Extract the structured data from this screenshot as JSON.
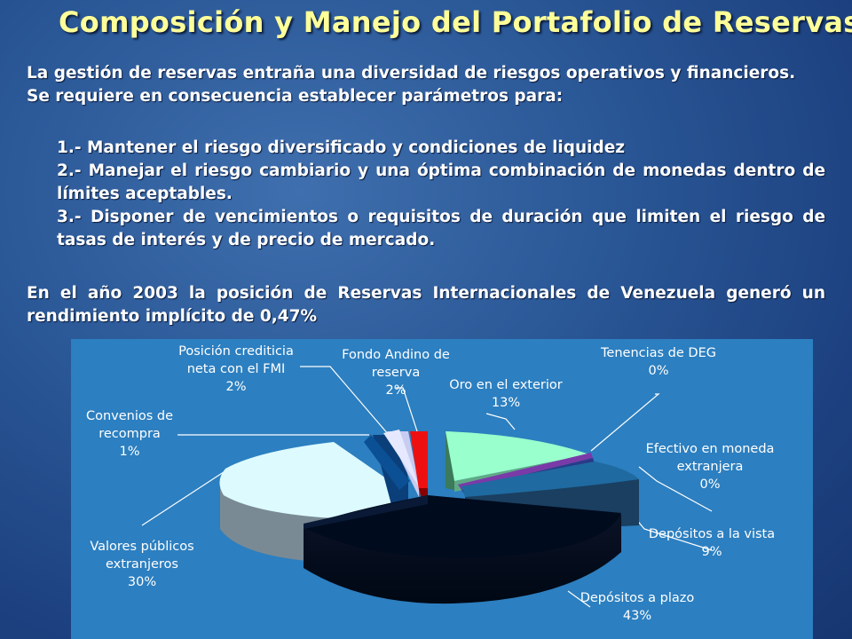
{
  "title": "Composición y Manejo del Portafolio de Reservas",
  "intro": {
    "line1": "La gestión de reservas entraña una diversidad de riesgos operativos y financieros.",
    "line2": "Se requiere en consecuencia establecer parámetros para:"
  },
  "points": [
    "1.- Mantener el riesgo diversificado y condiciones de liquidez",
    "2.- Manejar el riesgo cambiario y una óptima combinación de monedas dentro de límites aceptables.",
    "3.- Disponer de vencimientos o requisitos de duración que limiten el riesgo de tasas de interés y de precio de mercado."
  ],
  "conclusion": "En el año 2003 la posición de Reservas Internacionales de Venezuela generó un rendimiento implícito de 0,47%",
  "chart_data": {
    "type": "pie",
    "style": "3d-exploded",
    "slices": [
      {
        "name": "Oro en el exterior",
        "value": 13,
        "label": "13%",
        "color": "#99ffcc"
      },
      {
        "name": "Tenencias de DEG",
        "value": 0,
        "label": "0%",
        "color": "#7a3aa8"
      },
      {
        "name": "Efectivo en moneda extranjera",
        "value": 0,
        "label": "0%",
        "color": "#2a3a8a"
      },
      {
        "name": "Depósitos a la vista",
        "value": 9,
        "label": "9%",
        "color": "#1f6aa0"
      },
      {
        "name": "Depósitos a plazo",
        "value": 43,
        "label": "43%",
        "color": "#000b1e"
      },
      {
        "name": "Valores públicos extranjeros",
        "value": 30,
        "label": "30%",
        "color": "#ddfaff"
      },
      {
        "name": "Convenios de recompra",
        "value": 1,
        "label": "1%",
        "color": "#0b4f94"
      },
      {
        "name": "Posición crediticia neta con el FMI",
        "value": 2,
        "label": "2%",
        "color": "#d0d4ff"
      },
      {
        "name": "Fondo Andino de reserva",
        "value": 2,
        "label": "2%",
        "color": "#ee1010"
      }
    ],
    "labels": {
      "oro": [
        "Oro en el exterior",
        "13%"
      ],
      "deg": [
        "Tenencias de DEG",
        "0%"
      ],
      "efectivo": [
        "Efectivo en moneda",
        "extranjera",
        "0%"
      ],
      "vista": [
        "Depósitos a la vista",
        "9%"
      ],
      "plazo": [
        "Depósitos a plazo",
        "43%"
      ],
      "valores": [
        "Valores públicos",
        "extranjeros",
        "30%"
      ],
      "convenios": [
        "Convenios de",
        "recompra",
        "1%"
      ],
      "fmi": [
        "Posición crediticia",
        "neta con el FMI",
        "2%"
      ],
      "fondo": [
        "Fondo Andino de",
        "reserva",
        "2%"
      ]
    }
  }
}
